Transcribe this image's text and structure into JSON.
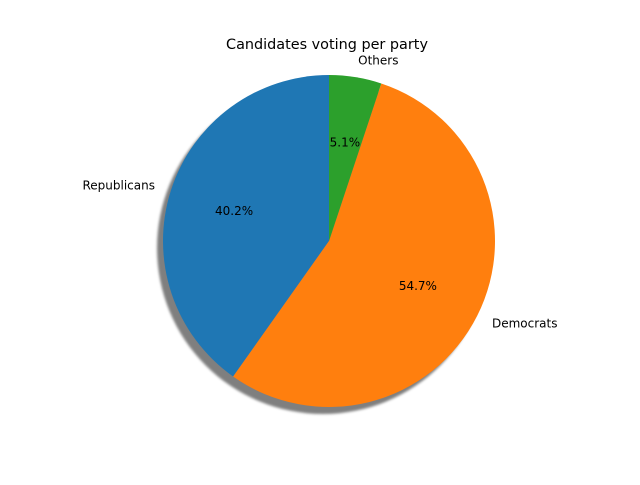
{
  "chart_data": {
    "type": "pie",
    "title": "Candidates voting per party",
    "categories": [
      "Republicans",
      "Democrats",
      "Others"
    ],
    "values": [
      40.2,
      54.7,
      5.1
    ],
    "value_labels": [
      "40.2%",
      "54.7%",
      "5.1%"
    ],
    "colors": [
      "#1f77b4",
      "#ff7f0e",
      "#2ca02c"
    ],
    "start_angle_deg": 90,
    "direction": "counterclockwise",
    "shadow": true,
    "legend": "none"
  }
}
